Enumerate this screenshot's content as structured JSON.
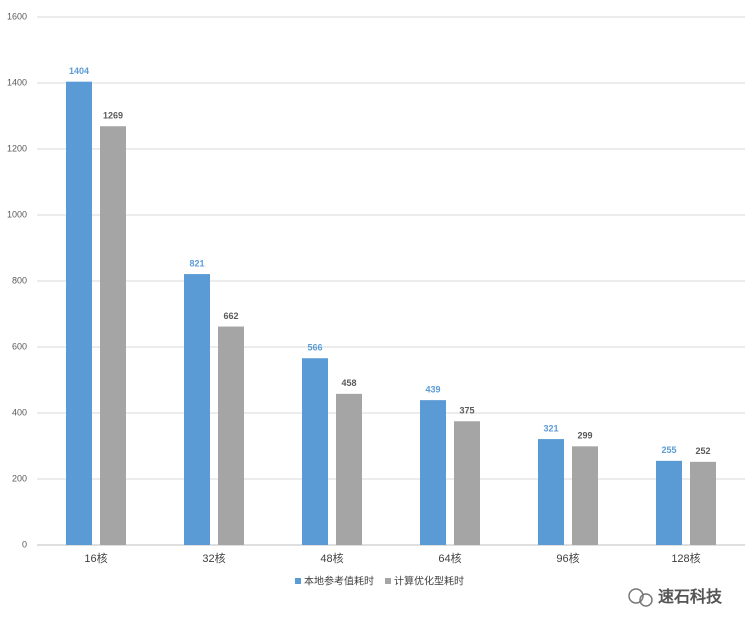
{
  "chart_data": {
    "type": "bar",
    "categories": [
      "16核",
      "32核",
      "48核",
      "64核",
      "96核",
      "128核"
    ],
    "series": [
      {
        "name": "本地参考值耗时",
        "color": "#5b9bd5",
        "values": [
          1404,
          821,
          566,
          439,
          321,
          255
        ]
      },
      {
        "name": "计算优化型耗时",
        "color": "#a5a5a5",
        "values": [
          1269,
          662,
          458,
          375,
          299,
          252
        ]
      }
    ],
    "ylim": [
      0,
      1600
    ],
    "yticks": [
      0,
      200,
      400,
      600,
      800,
      1000,
      1200,
      1400,
      1600
    ],
    "grid": true,
    "legend": "bottom"
  },
  "watermark": "速石科技"
}
